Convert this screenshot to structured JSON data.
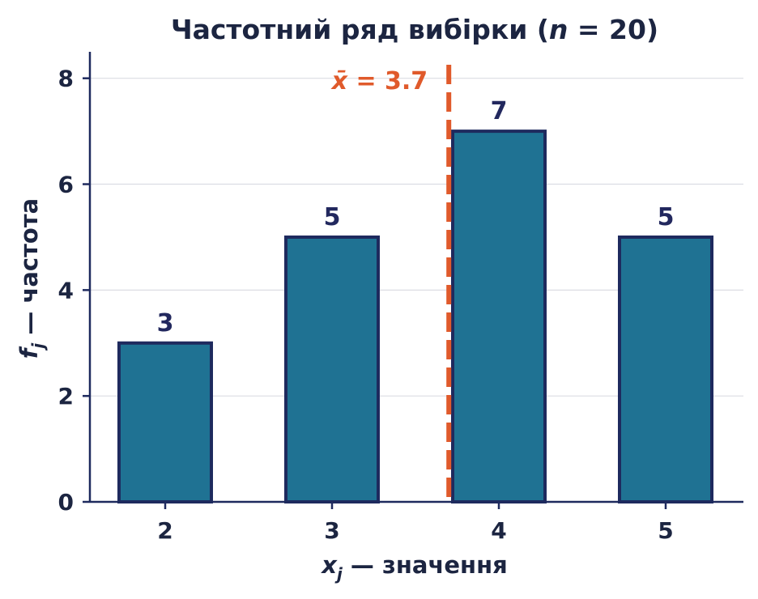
{
  "chart_data": {
    "type": "bar",
    "title_main": "Частотний ряд вибірки (",
    "title_var": "n",
    "title_rest": " = 20)",
    "categories": [
      "2",
      "3",
      "4",
      "5"
    ],
    "x": [
      2,
      3,
      4,
      5
    ],
    "values": [
      3,
      5,
      7,
      5
    ],
    "data_labels": [
      "3",
      "5",
      "7",
      "5"
    ],
    "xlabel_var": "x",
    "xlabel_sub": "j",
    "xlabel_text": " — значення",
    "ylabel_var": "f",
    "ylabel_sub": "j",
    "ylabel_text": " — частота",
    "ylim": [
      0,
      8.5
    ],
    "yticks": [
      0,
      2,
      4,
      6,
      8
    ],
    "grid": true,
    "mean": {
      "value": 3.7,
      "label_var": "x̄",
      "label_text": " = 3.7"
    },
    "colors": {
      "bar_fill": "#1f7293",
      "bar_edge": "#1e2a5e",
      "mean_line": "#e05a2b",
      "text": "#1c2541"
    }
  }
}
